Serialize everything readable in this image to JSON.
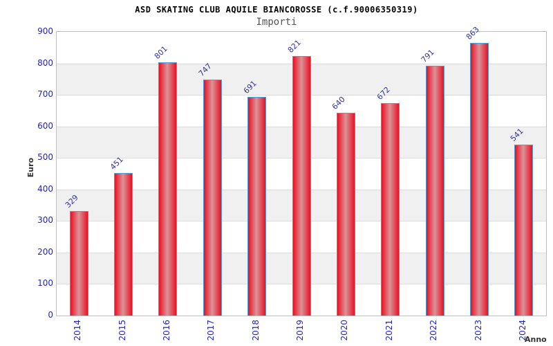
{
  "chart": {
    "title": "ASD SKATING CLUB AQUILE BIANCOROSSE (c.f.90006350319)",
    "subtitle": "Importi",
    "ylabel": "Euro",
    "xlabel": "Anno"
  },
  "chart_data": {
    "type": "bar",
    "title": "ASD SKATING CLUB AQUILE BIANCOROSSE (c.f.90006350319)",
    "subtitle": "Importi",
    "xlabel": "Anno",
    "ylabel": "Euro",
    "categories": [
      "2014",
      "2015",
      "2016",
      "2017",
      "2018",
      "2019",
      "2020",
      "2021",
      "2022",
      "2023",
      "2024"
    ],
    "values": [
      329,
      451,
      801,
      747,
      691,
      821,
      640,
      672,
      791,
      863,
      541
    ],
    "ylim": [
      0,
      900
    ],
    "yticks": [
      0,
      100,
      200,
      300,
      400,
      500,
      600,
      700,
      800,
      900
    ],
    "grid": "alternating-horizontal-bands",
    "legend": false,
    "bar_label_rotation_deg": -45,
    "x_tick_rotation_deg": -90
  },
  "colors": {
    "bar_fill": "#e81123",
    "bar_fill_light": "#dc9398",
    "bar_border": "#4da0e0",
    "band": "#f0f0f0",
    "gridline": "#dcdcdc",
    "tick_label": "#2222cc",
    "bar_value_label": "#333399",
    "title": "#000000",
    "subtitle": "#555555",
    "axis_name_label": "#333333"
  }
}
